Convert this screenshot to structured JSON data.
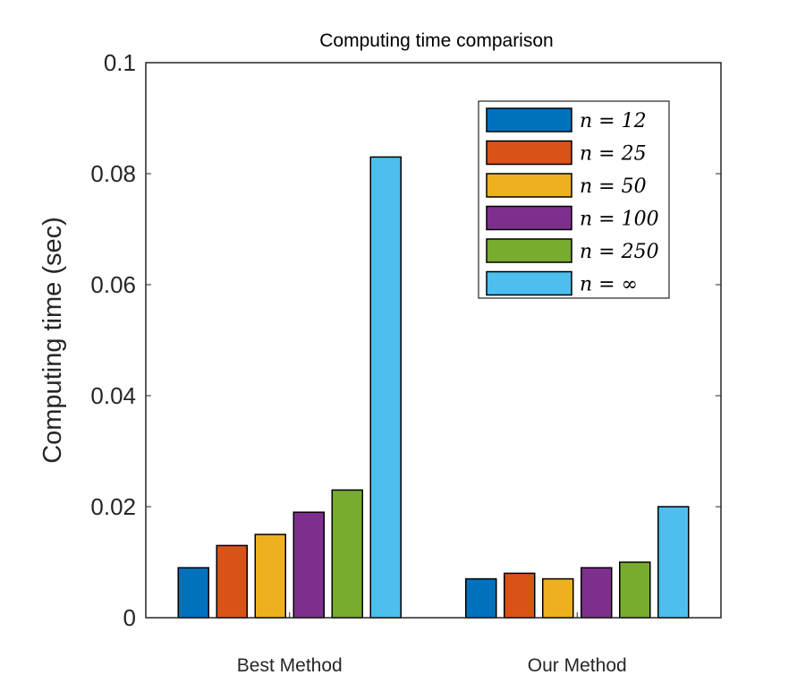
{
  "chart_data": {
    "type": "bar",
    "title": "Computing time comparison",
    "xlabel": "",
    "ylabel": "Computing time (sec)",
    "ylim": [
      0,
      0.1
    ],
    "yticks": [
      "0",
      "0.02",
      "0.04",
      "0.06",
      "0.08",
      "0.1"
    ],
    "ytick_values": [
      0,
      0.02,
      0.04,
      0.06,
      0.08,
      0.1
    ],
    "categories": [
      "Best Method",
      "Our Method"
    ],
    "grid": false,
    "legend_position": "top-right",
    "series": [
      {
        "name": "n = 12",
        "color": "#0072BD",
        "values": [
          0.009,
          0.007
        ]
      },
      {
        "name": "n = 25",
        "color": "#D95319",
        "values": [
          0.013,
          0.008
        ]
      },
      {
        "name": "n = 50",
        "color": "#EDB120",
        "values": [
          0.015,
          0.007
        ]
      },
      {
        "name": "n = 100",
        "color": "#7E2F8E",
        "values": [
          0.019,
          0.009
        ]
      },
      {
        "name": "n = 250",
        "color": "#77AC30",
        "values": [
          0.023,
          0.01
        ]
      },
      {
        "name": "n = ∞",
        "color": "#4DBEEE",
        "values": [
          0.083,
          0.02
        ]
      }
    ]
  }
}
